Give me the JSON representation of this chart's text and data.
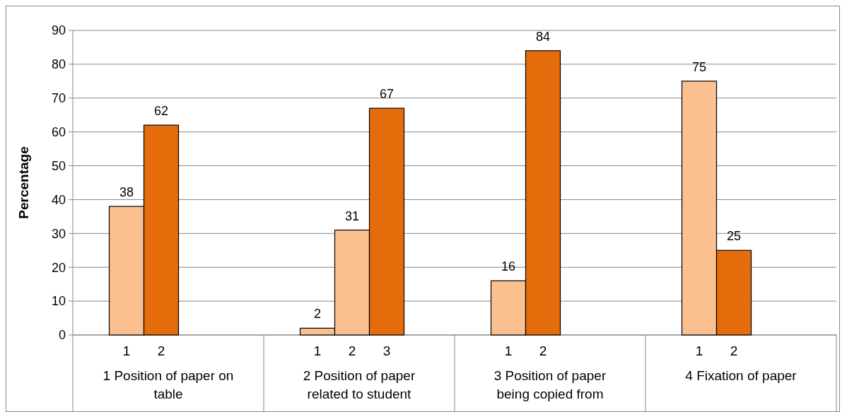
{
  "chart_data": {
    "type": "bar",
    "ylabel": "Percentage",
    "categories": [
      "1 Position of paper on table",
      "2 Position of paper related to student",
      "3 Position of paper being copied from",
      "4 Fixation of paper"
    ],
    "series": [
      {
        "name": "1",
        "colors": [
          "#fac090",
          "#fac090",
          "#fac090",
          "#fac090"
        ],
        "values": [
          38,
          2,
          16,
          75
        ]
      },
      {
        "name": "2",
        "colors": [
          "#e46c0a",
          "#fac090",
          "#e46c0a",
          "#e46c0a"
        ],
        "values": [
          62,
          31,
          84,
          25
        ]
      },
      {
        "name": "3",
        "color": "#e46c0a",
        "values": [
          null,
          67,
          null,
          null
        ]
      }
    ],
    "ylim": [
      0,
      90
    ],
    "yticks": [
      0,
      10,
      20,
      30,
      40,
      50,
      60,
      70,
      80,
      90
    ],
    "grid": "y",
    "data_labels": true,
    "legend": false
  }
}
